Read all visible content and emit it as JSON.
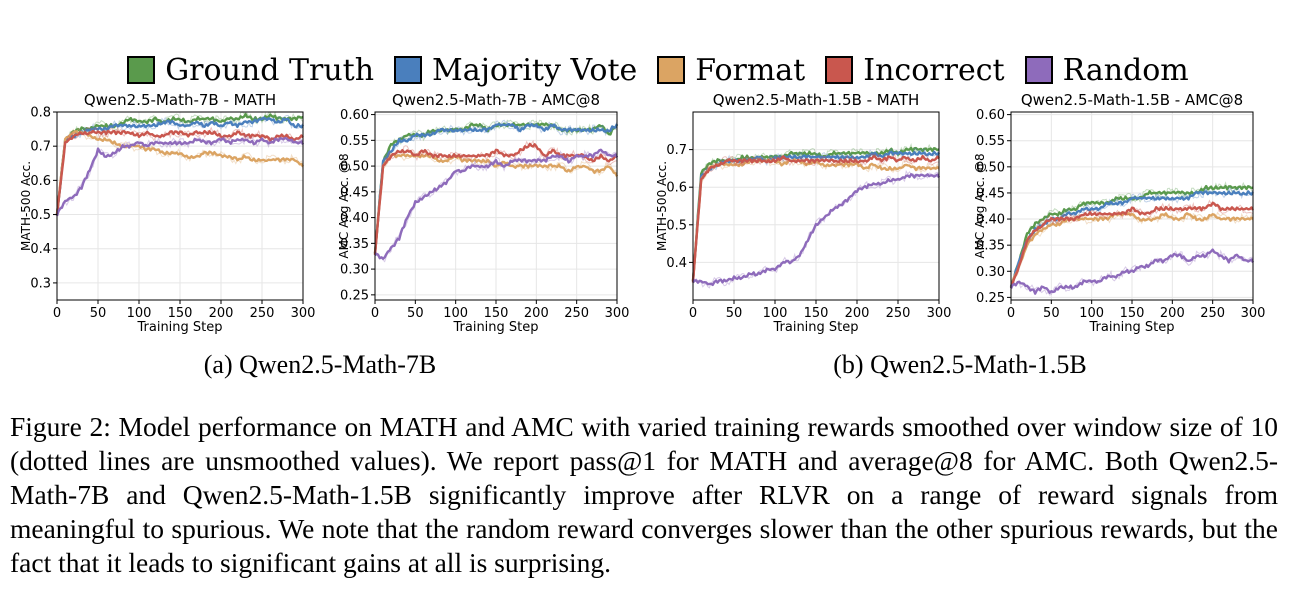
{
  "legend": [
    {
      "label": "Ground Truth",
      "color": "#5a9a4c"
    },
    {
      "label": "Majority Vote",
      "color": "#4a7fbd"
    },
    {
      "label": "Format",
      "color": "#dba463"
    },
    {
      "label": "Incorrect",
      "color": "#c9574e"
    },
    {
      "label": "Random",
      "color": "#8e6bbb"
    }
  ],
  "subcaptions": {
    "a": "(a) Qwen2.5-Math-7B",
    "b": "(b) Qwen2.5-Math-1.5B"
  },
  "caption": "Figure 2: Model performance on MATH and AMC with varied training rewards smoothed over window size of 10 (dotted lines are unsmoothed values). We report pass@1 for MATH and average@8 for AMC. Both Qwen2.5-Math-7B and Qwen2.5-Math-1.5B significantly improve after RLVR on a range of reward signals from meaningful to spurious. We note that the random reward converges slower than the other spurious rewards, but the fact that it leads to significant gains at all is surprising.",
  "chart_data": [
    {
      "type": "line",
      "title": "Qwen2.5-Math-7B - MATH",
      "xlabel": "Training Step",
      "ylabel": "MATH-500 Acc.",
      "xlim": [
        0,
        300
      ],
      "ylim": [
        0.25,
        0.8
      ],
      "xticks": [
        0,
        50,
        100,
        150,
        200,
        250,
        300
      ],
      "yticks": [
        0.3,
        0.4,
        0.5,
        0.6,
        0.7,
        0.8
      ],
      "ytick_labels": [
        "0.3",
        "0.4",
        "0.5",
        "0.6",
        "0.7",
        "0.8"
      ],
      "x": [
        0,
        10,
        20,
        30,
        40,
        50,
        60,
        70,
        80,
        90,
        100,
        110,
        120,
        130,
        140,
        150,
        160,
        170,
        180,
        190,
        200,
        210,
        220,
        230,
        240,
        250,
        260,
        270,
        280,
        290,
        300
      ],
      "series": [
        {
          "name": "Ground Truth",
          "color": "#5a9a4c",
          "values": [
            0.5,
            0.72,
            0.74,
            0.75,
            0.75,
            0.76,
            0.76,
            0.76,
            0.77,
            0.78,
            0.77,
            0.77,
            0.78,
            0.77,
            0.78,
            0.78,
            0.77,
            0.78,
            0.78,
            0.78,
            0.77,
            0.78,
            0.78,
            0.79,
            0.78,
            0.78,
            0.79,
            0.78,
            0.78,
            0.78,
            0.785
          ]
        },
        {
          "name": "Majority Vote",
          "color": "#4a7fbd",
          "values": [
            0.5,
            0.72,
            0.73,
            0.74,
            0.75,
            0.75,
            0.75,
            0.76,
            0.76,
            0.76,
            0.76,
            0.76,
            0.76,
            0.77,
            0.77,
            0.76,
            0.76,
            0.77,
            0.76,
            0.77,
            0.76,
            0.77,
            0.76,
            0.77,
            0.77,
            0.78,
            0.78,
            0.77,
            0.78,
            0.76,
            0.76
          ]
        },
        {
          "name": "Format",
          "color": "#dba463",
          "values": [
            0.5,
            0.72,
            0.74,
            0.74,
            0.73,
            0.72,
            0.72,
            0.71,
            0.7,
            0.7,
            0.7,
            0.69,
            0.69,
            0.68,
            0.68,
            0.68,
            0.67,
            0.67,
            0.68,
            0.68,
            0.67,
            0.67,
            0.66,
            0.67,
            0.66,
            0.66,
            0.66,
            0.66,
            0.66,
            0.66,
            0.64
          ]
        },
        {
          "name": "Incorrect",
          "color": "#c9574e",
          "values": [
            0.5,
            0.71,
            0.73,
            0.74,
            0.74,
            0.74,
            0.74,
            0.74,
            0.74,
            0.74,
            0.73,
            0.74,
            0.73,
            0.73,
            0.74,
            0.74,
            0.73,
            0.74,
            0.74,
            0.74,
            0.73,
            0.73,
            0.74,
            0.73,
            0.73,
            0.73,
            0.72,
            0.73,
            0.73,
            0.72,
            0.73
          ]
        },
        {
          "name": "Random",
          "color": "#8e6bbb",
          "values": [
            0.5,
            0.54,
            0.55,
            0.58,
            0.63,
            0.69,
            0.67,
            0.68,
            0.7,
            0.7,
            0.71,
            0.7,
            0.71,
            0.71,
            0.71,
            0.71,
            0.71,
            0.72,
            0.71,
            0.71,
            0.72,
            0.71,
            0.72,
            0.72,
            0.71,
            0.72,
            0.71,
            0.72,
            0.72,
            0.71,
            0.71
          ]
        }
      ]
    },
    {
      "type": "line",
      "title": "Qwen2.5-Math-7B - AMC@8",
      "xlabel": "Training Step",
      "ylabel": "AMC Avg Acc. @8",
      "xlim": [
        0,
        300
      ],
      "ylim": [
        0.24,
        0.605
      ],
      "xticks": [
        0,
        50,
        100,
        150,
        200,
        250,
        300
      ],
      "yticks": [
        0.25,
        0.3,
        0.35,
        0.4,
        0.45,
        0.5,
        0.55,
        0.6
      ],
      "ytick_labels": [
        "0.25",
        "0.30",
        "0.35",
        "0.40",
        "0.45",
        "0.50",
        "0.55",
        "0.60"
      ],
      "x": [
        0,
        10,
        20,
        30,
        40,
        50,
        60,
        70,
        80,
        90,
        100,
        110,
        120,
        130,
        140,
        150,
        160,
        170,
        180,
        190,
        200,
        210,
        220,
        230,
        240,
        250,
        260,
        270,
        280,
        290,
        300
      ],
      "series": [
        {
          "name": "Ground Truth",
          "color": "#5a9a4c",
          "values": [
            0.33,
            0.51,
            0.54,
            0.55,
            0.56,
            0.56,
            0.56,
            0.57,
            0.57,
            0.57,
            0.57,
            0.57,
            0.58,
            0.58,
            0.57,
            0.58,
            0.58,
            0.58,
            0.58,
            0.58,
            0.58,
            0.58,
            0.58,
            0.57,
            0.57,
            0.57,
            0.57,
            0.57,
            0.58,
            0.56,
            0.58
          ]
        },
        {
          "name": "Majority Vote",
          "color": "#4a7fbd",
          "values": [
            0.33,
            0.51,
            0.53,
            0.55,
            0.55,
            0.56,
            0.56,
            0.56,
            0.57,
            0.57,
            0.57,
            0.57,
            0.57,
            0.57,
            0.57,
            0.58,
            0.58,
            0.58,
            0.57,
            0.58,
            0.58,
            0.57,
            0.58,
            0.57,
            0.57,
            0.57,
            0.57,
            0.57,
            0.57,
            0.57,
            0.58
          ]
        },
        {
          "name": "Format",
          "color": "#dba463",
          "values": [
            0.33,
            0.5,
            0.52,
            0.52,
            0.52,
            0.52,
            0.52,
            0.52,
            0.51,
            0.51,
            0.52,
            0.51,
            0.51,
            0.51,
            0.51,
            0.5,
            0.51,
            0.5,
            0.5,
            0.5,
            0.5,
            0.5,
            0.5,
            0.5,
            0.49,
            0.5,
            0.5,
            0.49,
            0.49,
            0.5,
            0.48
          ]
        },
        {
          "name": "Incorrect",
          "color": "#c9574e",
          "values": [
            0.33,
            0.5,
            0.52,
            0.53,
            0.53,
            0.52,
            0.53,
            0.52,
            0.52,
            0.52,
            0.52,
            0.52,
            0.52,
            0.52,
            0.52,
            0.53,
            0.52,
            0.52,
            0.53,
            0.54,
            0.54,
            0.52,
            0.53,
            0.52,
            0.52,
            0.52,
            0.52,
            0.51,
            0.52,
            0.51,
            0.52
          ]
        },
        {
          "name": "Random",
          "color": "#8e6bbb",
          "values": [
            0.33,
            0.32,
            0.34,
            0.36,
            0.4,
            0.43,
            0.44,
            0.45,
            0.46,
            0.47,
            0.49,
            0.49,
            0.5,
            0.5,
            0.5,
            0.51,
            0.5,
            0.51,
            0.51,
            0.51,
            0.51,
            0.51,
            0.52,
            0.52,
            0.51,
            0.52,
            0.52,
            0.52,
            0.53,
            0.52,
            0.52
          ]
        }
      ]
    },
    {
      "type": "line",
      "title": "Qwen2.5-Math-1.5B - MATH",
      "xlabel": "Training Step",
      "ylabel": "MATH-500 Acc.",
      "xlim": [
        0,
        300
      ],
      "ylim": [
        0.3,
        0.8
      ],
      "xticks": [
        0,
        50,
        100,
        150,
        200,
        250,
        300
      ],
      "yticks": [
        0.4,
        0.5,
        0.6,
        0.7
      ],
      "ytick_labels": [
        "0.4",
        "0.5",
        "0.6",
        "0.7"
      ],
      "x": [
        0,
        10,
        20,
        30,
        40,
        50,
        60,
        70,
        80,
        90,
        100,
        110,
        120,
        130,
        140,
        150,
        160,
        170,
        180,
        190,
        200,
        210,
        220,
        230,
        240,
        250,
        260,
        270,
        280,
        290,
        300
      ],
      "series": [
        {
          "name": "Ground Truth",
          "color": "#5a9a4c",
          "values": [
            0.35,
            0.64,
            0.66,
            0.67,
            0.67,
            0.67,
            0.68,
            0.68,
            0.68,
            0.68,
            0.68,
            0.68,
            0.69,
            0.69,
            0.69,
            0.69,
            0.68,
            0.69,
            0.69,
            0.69,
            0.69,
            0.69,
            0.69,
            0.69,
            0.7,
            0.69,
            0.7,
            0.7,
            0.7,
            0.7,
            0.7
          ]
        },
        {
          "name": "Majority Vote",
          "color": "#4a7fbd",
          "values": [
            0.35,
            0.63,
            0.65,
            0.66,
            0.67,
            0.67,
            0.67,
            0.67,
            0.68,
            0.67,
            0.68,
            0.68,
            0.68,
            0.68,
            0.68,
            0.68,
            0.68,
            0.68,
            0.68,
            0.68,
            0.68,
            0.68,
            0.69,
            0.68,
            0.69,
            0.69,
            0.69,
            0.69,
            0.69,
            0.69,
            0.69
          ]
        },
        {
          "name": "Format",
          "color": "#dba463",
          "values": [
            0.35,
            0.62,
            0.65,
            0.66,
            0.66,
            0.66,
            0.66,
            0.67,
            0.67,
            0.67,
            0.67,
            0.66,
            0.67,
            0.67,
            0.66,
            0.67,
            0.66,
            0.66,
            0.66,
            0.66,
            0.66,
            0.65,
            0.66,
            0.65,
            0.65,
            0.65,
            0.66,
            0.65,
            0.65,
            0.65,
            0.65
          ]
        },
        {
          "name": "Incorrect",
          "color": "#c9574e",
          "values": [
            0.35,
            0.62,
            0.65,
            0.66,
            0.67,
            0.67,
            0.67,
            0.67,
            0.67,
            0.67,
            0.67,
            0.68,
            0.67,
            0.67,
            0.67,
            0.67,
            0.67,
            0.67,
            0.67,
            0.67,
            0.67,
            0.67,
            0.68,
            0.67,
            0.68,
            0.67,
            0.68,
            0.67,
            0.68,
            0.67,
            0.68
          ]
        },
        {
          "name": "Random",
          "color": "#8e6bbb",
          "values": [
            0.35,
            0.35,
            0.34,
            0.35,
            0.35,
            0.36,
            0.36,
            0.37,
            0.37,
            0.38,
            0.38,
            0.4,
            0.4,
            0.42,
            0.46,
            0.5,
            0.52,
            0.54,
            0.55,
            0.57,
            0.59,
            0.6,
            0.61,
            0.61,
            0.62,
            0.62,
            0.63,
            0.63,
            0.63,
            0.63,
            0.63
          ]
        }
      ]
    },
    {
      "type": "line",
      "title": "Qwen2.5-Math-1.5B - AMC@8",
      "xlabel": "Training Step",
      "ylabel": "AMC Avg Acc. @8",
      "xlim": [
        0,
        300
      ],
      "ylim": [
        0.245,
        0.605
      ],
      "xticks": [
        0,
        50,
        100,
        150,
        200,
        250,
        300
      ],
      "yticks": [
        0.25,
        0.3,
        0.35,
        0.4,
        0.45,
        0.5,
        0.55,
        0.6
      ],
      "ytick_labels": [
        "0.25",
        "0.30",
        "0.35",
        "0.40",
        "0.45",
        "0.50",
        "0.55",
        "0.60"
      ],
      "x": [
        0,
        10,
        20,
        30,
        40,
        50,
        60,
        70,
        80,
        90,
        100,
        110,
        120,
        130,
        140,
        150,
        160,
        170,
        180,
        190,
        200,
        210,
        220,
        230,
        240,
        250,
        260,
        270,
        280,
        290,
        300
      ],
      "series": [
        {
          "name": "Ground Truth",
          "color": "#5a9a4c",
          "values": [
            0.27,
            0.32,
            0.37,
            0.39,
            0.4,
            0.41,
            0.41,
            0.42,
            0.42,
            0.43,
            0.43,
            0.43,
            0.43,
            0.44,
            0.44,
            0.44,
            0.44,
            0.45,
            0.45,
            0.45,
            0.45,
            0.45,
            0.45,
            0.45,
            0.46,
            0.46,
            0.46,
            0.46,
            0.46,
            0.46,
            0.46
          ]
        },
        {
          "name": "Majority Vote",
          "color": "#4a7fbd",
          "values": [
            0.27,
            0.32,
            0.36,
            0.38,
            0.39,
            0.4,
            0.4,
            0.41,
            0.41,
            0.42,
            0.42,
            0.42,
            0.43,
            0.43,
            0.43,
            0.44,
            0.44,
            0.44,
            0.44,
            0.44,
            0.44,
            0.44,
            0.44,
            0.45,
            0.45,
            0.45,
            0.45,
            0.45,
            0.45,
            0.45,
            0.45
          ]
        },
        {
          "name": "Format",
          "color": "#dba463",
          "values": [
            0.27,
            0.31,
            0.35,
            0.37,
            0.38,
            0.39,
            0.39,
            0.4,
            0.4,
            0.4,
            0.4,
            0.4,
            0.4,
            0.41,
            0.41,
            0.41,
            0.4,
            0.4,
            0.4,
            0.41,
            0.4,
            0.4,
            0.41,
            0.4,
            0.4,
            0.41,
            0.4,
            0.4,
            0.4,
            0.4,
            0.4
          ]
        },
        {
          "name": "Incorrect",
          "color": "#c9574e",
          "values": [
            0.27,
            0.31,
            0.36,
            0.38,
            0.39,
            0.4,
            0.4,
            0.4,
            0.4,
            0.41,
            0.41,
            0.41,
            0.41,
            0.41,
            0.41,
            0.42,
            0.41,
            0.41,
            0.42,
            0.42,
            0.42,
            0.42,
            0.42,
            0.42,
            0.42,
            0.43,
            0.42,
            0.42,
            0.42,
            0.42,
            0.42
          ]
        },
        {
          "name": "Random",
          "color": "#8e6bbb",
          "values": [
            0.27,
            0.28,
            0.27,
            0.26,
            0.27,
            0.26,
            0.27,
            0.27,
            0.27,
            0.28,
            0.28,
            0.28,
            0.29,
            0.29,
            0.3,
            0.3,
            0.31,
            0.31,
            0.32,
            0.32,
            0.33,
            0.33,
            0.32,
            0.33,
            0.33,
            0.34,
            0.33,
            0.32,
            0.33,
            0.32,
            0.32
          ]
        }
      ]
    }
  ]
}
